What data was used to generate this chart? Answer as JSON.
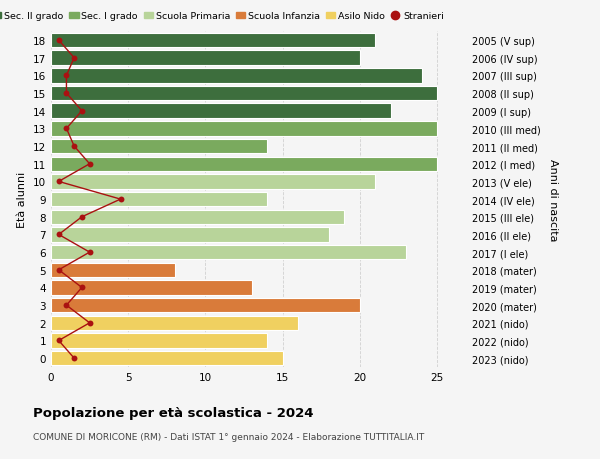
{
  "ages": [
    18,
    17,
    16,
    15,
    14,
    13,
    12,
    11,
    10,
    9,
    8,
    7,
    6,
    5,
    4,
    3,
    2,
    1,
    0
  ],
  "right_labels": [
    "2005 (V sup)",
    "2006 (IV sup)",
    "2007 (III sup)",
    "2008 (II sup)",
    "2009 (I sup)",
    "2010 (III med)",
    "2011 (II med)",
    "2012 (I med)",
    "2013 (V ele)",
    "2014 (IV ele)",
    "2015 (III ele)",
    "2016 (II ele)",
    "2017 (I ele)",
    "2018 (mater)",
    "2019 (mater)",
    "2020 (mater)",
    "2021 (nido)",
    "2022 (nido)",
    "2023 (nido)"
  ],
  "bar_values": [
    21,
    20,
    24,
    25,
    22,
    25,
    14,
    25,
    21,
    14,
    19,
    18,
    23,
    8,
    13,
    20,
    16,
    14,
    15
  ],
  "bar_colors": [
    "#3d6e3d",
    "#3d6e3d",
    "#3d6e3d",
    "#3d6e3d",
    "#3d6e3d",
    "#7aaa5e",
    "#7aaa5e",
    "#7aaa5e",
    "#b8d49a",
    "#b8d49a",
    "#b8d49a",
    "#b8d49a",
    "#b8d49a",
    "#d97b3a",
    "#d97b3a",
    "#d97b3a",
    "#f0d060",
    "#f0d060",
    "#f0d060"
  ],
  "stranieri_values": [
    0.5,
    1.5,
    1.0,
    1.0,
    2.0,
    1.0,
    1.5,
    2.5,
    0.5,
    4.5,
    2.0,
    0.5,
    2.5,
    0.5,
    2.0,
    1.0,
    2.5,
    0.5,
    1.5
  ],
  "legend_labels": [
    "Sec. II grado",
    "Sec. I grado",
    "Scuola Primaria",
    "Scuola Infanzia",
    "Asilo Nido",
    "Stranieri"
  ],
  "legend_colors": [
    "#3d6e3d",
    "#7aaa5e",
    "#b8d49a",
    "#d97b3a",
    "#f0d060",
    "#aa1111"
  ],
  "title": "Popolazione per età scolastica - 2024",
  "subtitle": "COMUNE DI MORICONE (RM) - Dati ISTAT 1° gennaio 2024 - Elaborazione TUTTITALIA.IT",
  "ylabel_left": "Età alunni",
  "ylabel_right": "Anni di nascita",
  "xlim": [
    0,
    27
  ],
  "xticks": [
    0,
    5,
    10,
    15,
    20,
    25
  ],
  "background_color": "#f5f5f5",
  "grid_color": "#cccccc",
  "bar_height": 0.82
}
